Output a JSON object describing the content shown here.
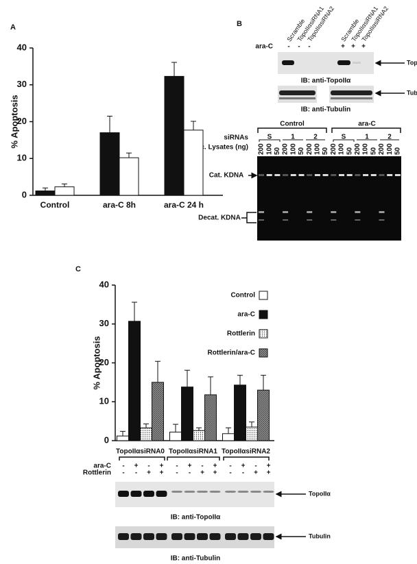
{
  "panels": [
    "A",
    "B",
    "C"
  ],
  "chart_data": [
    {
      "type": "bar",
      "ylabel": "% Apoptosis",
      "categories": [
        "Control",
        "ara-C 8h",
        "ara-C 24 h"
      ],
      "series": [
        {
          "color": "#111111",
          "values": [
            1.2,
            17,
            32.3
          ],
          "errors": [
            0.8,
            4.5,
            3.8
          ]
        },
        {
          "color": "#ffffff",
          "values": [
            2.3,
            10.2,
            17.7
          ],
          "errors": [
            0.8,
            1.3,
            2.4
          ]
        }
      ],
      "ylim": [
        0,
        40
      ],
      "yticks": [
        0,
        10,
        20,
        30,
        40
      ]
    },
    {
      "type": "bar",
      "ylabel": "% Apoptosis",
      "categories": [
        "TopoIIαsiRNA0",
        "TopoIIαsiRNA1",
        "TopoIIαsiRNA2"
      ],
      "series": [
        {
          "name": "Control",
          "color": "#ffffff",
          "values": [
            1.2,
            2.2,
            1.8
          ],
          "errors": [
            1.2,
            2,
            1.5
          ]
        },
        {
          "name": "ara-C",
          "color": "#111111",
          "values": [
            30.7,
            13.8,
            14.3
          ],
          "errors": [
            4.9,
            4.3,
            2.5
          ]
        },
        {
          "name": "Rottlerin",
          "color": "#ffffff",
          "pattern": "dots",
          "values": [
            3.3,
            2.6,
            3.5
          ],
          "errors": [
            1,
            0.7,
            1.3
          ]
        },
        {
          "name": "Rottlerin/ara-C",
          "color": "#999999",
          "pattern": "hatch",
          "values": [
            15,
            11.8,
            13
          ],
          "errors": [
            5.4,
            4.6,
            3.8
          ]
        }
      ],
      "legend": "upper right",
      "ylim": [
        0,
        40
      ],
      "yticks": [
        0,
        10,
        20,
        30,
        40
      ]
    }
  ],
  "panel_b": {
    "lanes": [
      "Scramble",
      "TopoIIαsiRNA1",
      "TopoIIαsiRNA2",
      "Scramble",
      "TopoIIαsiRNA1",
      "TopoIIαsiRNA2"
    ],
    "ara_c_label": "ara-C",
    "ara_c": [
      "-",
      "-",
      "-",
      "+",
      "+",
      "+"
    ],
    "topo_label": "TopoIIα",
    "ib_topo": "IB: anti-TopoIIα",
    "tubulin_label": "Tubulin",
    "ib_tubulin": "IB: anti-Tubulin",
    "gel": {
      "sirnas_label": "siRNAs",
      "groups": [
        "Control",
        "ara-C"
      ],
      "sirnas": [
        "S",
        "1",
        "2",
        "S",
        "1",
        "2"
      ],
      "lysates_label": "Nuc. Lysates (ng)",
      "lysates": [
        200,
        100,
        50,
        200,
        100,
        50,
        200,
        100,
        50,
        200,
        100,
        50,
        200,
        100,
        50,
        200,
        100,
        50
      ],
      "cat": "Cat. KDNA",
      "decat": "Decat. KDNA"
    }
  },
  "panel_c": {
    "ara_c_label": "ara-C",
    "ara_c": [
      "-",
      "+",
      "-",
      "+",
      "-",
      "+",
      "-",
      "+",
      "-",
      "+",
      "-",
      "+"
    ],
    "rottlerin_label": "Rottlerin",
    "rottlerin": [
      "-",
      "-",
      "+",
      "+",
      "-",
      "-",
      "+",
      "+",
      "-",
      "-",
      "+",
      "+"
    ],
    "topo_label": "TopoIIα",
    "ib_topo": "IB: anti-TopoIIα",
    "tubulin_label": "Tubulin",
    "ib_tubulin": "IB: anti-Tubulin"
  }
}
